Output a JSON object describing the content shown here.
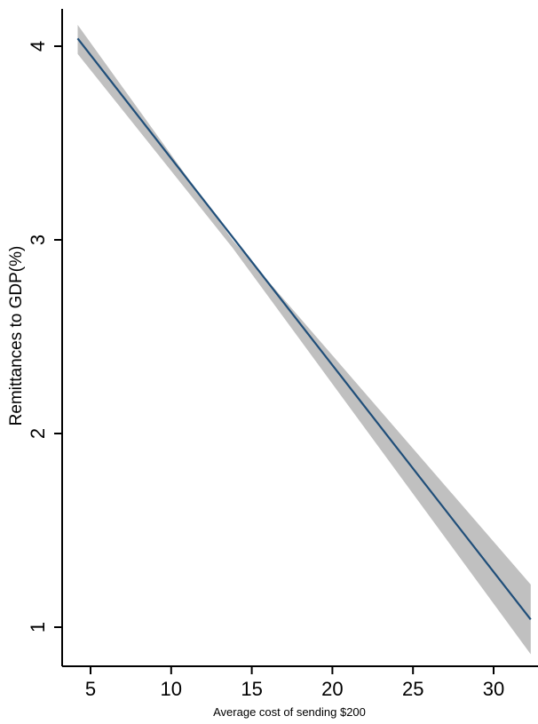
{
  "chart_data": {
    "type": "line",
    "title": "",
    "xlabel": "Average cost of sending $200",
    "ylabel": "Remittances to GDP(%)",
    "xlim": [
      3.5,
      33.0
    ],
    "ylim": [
      0.7,
      4.2
    ],
    "x_ticks": [
      5,
      10,
      15,
      20,
      25,
      30
    ],
    "y_ticks": [
      1,
      2,
      3,
      4
    ],
    "grid": false,
    "legend": "none",
    "series": [
      {
        "fit_line": {
          "x": [
            4.2,
            32.3
          ],
          "y": [
            4.04,
            1.04
          ]
        },
        "ci_band": {
          "x": [
            4.2,
            13.8,
            32.3
          ],
          "upper": [
            4.11,
            3.0,
            1.22
          ],
          "lower": [
            3.96,
            2.96,
            0.86
          ]
        }
      }
    ],
    "colors": {
      "line": "#1f4e79",
      "band": "#c0c0c0",
      "axis": "#000000"
    }
  }
}
